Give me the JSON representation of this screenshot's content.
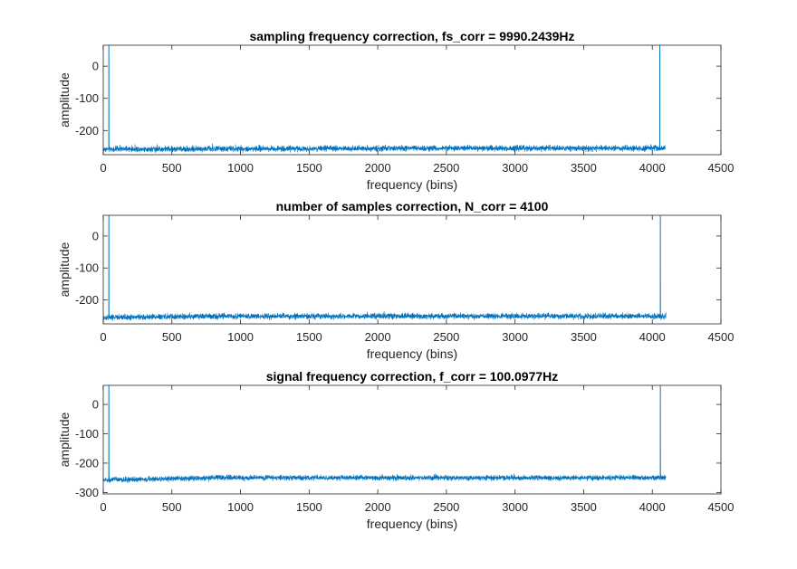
{
  "chart_data": [
    {
      "type": "line",
      "title": "sampling frequency correction, fs_corr = 9990.2439Hz",
      "xlabel": "frequency (bins)",
      "ylabel": "amplitude",
      "xlim": [
        0,
        4500
      ],
      "ylim": [
        -275,
        65
      ],
      "xticks": [
        "0",
        "500",
        "1000",
        "1500",
        "2000",
        "2500",
        "3000",
        "3500",
        "4000",
        "4500"
      ],
      "yticks": [
        "0",
        "-100",
        "-200"
      ],
      "grid": false,
      "color": "#0072BD",
      "noise_floor": -258,
      "n_points": 4096,
      "peaks": [
        {
          "x": 41,
          "y": 65
        },
        {
          "x": 4055,
          "y": 65
        }
      ],
      "wobble": [
        {
          "x": 0,
          "y": 0
        },
        {
          "x": 1500,
          "y": 2
        },
        {
          "x": 2600,
          "y": 3
        },
        {
          "x": 4000,
          "y": 3
        }
      ]
    },
    {
      "type": "line",
      "title": "number of samples correction, N_corr = 4100",
      "xlabel": "frequency (bins)",
      "ylabel": "amplitude",
      "xlim": [
        0,
        4500
      ],
      "ylim": [
        -275,
        65
      ],
      "xticks": [
        "0",
        "500",
        "1000",
        "1500",
        "2000",
        "2500",
        "3000",
        "3500",
        "4000",
        "4500"
      ],
      "yticks": [
        "0",
        "-100",
        "-200"
      ],
      "grid": false,
      "color": "#0072BD",
      "noise_floor": -255,
      "n_points": 4100,
      "peaks": [
        {
          "x": 41,
          "y": 65
        },
        {
          "x": 4059,
          "y": 65
        }
      ],
      "wobble": [
        {
          "x": 0,
          "y": 0
        },
        {
          "x": 800,
          "y": 4
        },
        {
          "x": 1600,
          "y": 4
        },
        {
          "x": 2500,
          "y": 4
        },
        {
          "x": 3300,
          "y": 4
        }
      ]
    },
    {
      "type": "line",
      "title": "signal frequency correction, f_corr = 100.0977Hz",
      "xlabel": "frequency (bins)",
      "ylabel": "amplitude",
      "xlim": [
        0,
        4500
      ],
      "ylim": [
        -305,
        65
      ],
      "xticks": [
        "0",
        "500",
        "1000",
        "1500",
        "2000",
        "2500",
        "3000",
        "3500",
        "4000",
        "4500"
      ],
      "yticks": [
        "0",
        "-100",
        "-200",
        "-300"
      ],
      "grid": false,
      "color": "#0072BD",
      "noise_floor": -258,
      "n_points": 4100,
      "peaks": [
        {
          "x": 41,
          "y": 65
        },
        {
          "x": 4059,
          "y": 65
        }
      ],
      "wobble": [
        {
          "x": 0,
          "y": 0
        },
        {
          "x": 800,
          "y": 8
        },
        {
          "x": 1650,
          "y": 8
        },
        {
          "x": 2450,
          "y": 8
        },
        {
          "x": 3300,
          "y": 8
        }
      ]
    }
  ]
}
